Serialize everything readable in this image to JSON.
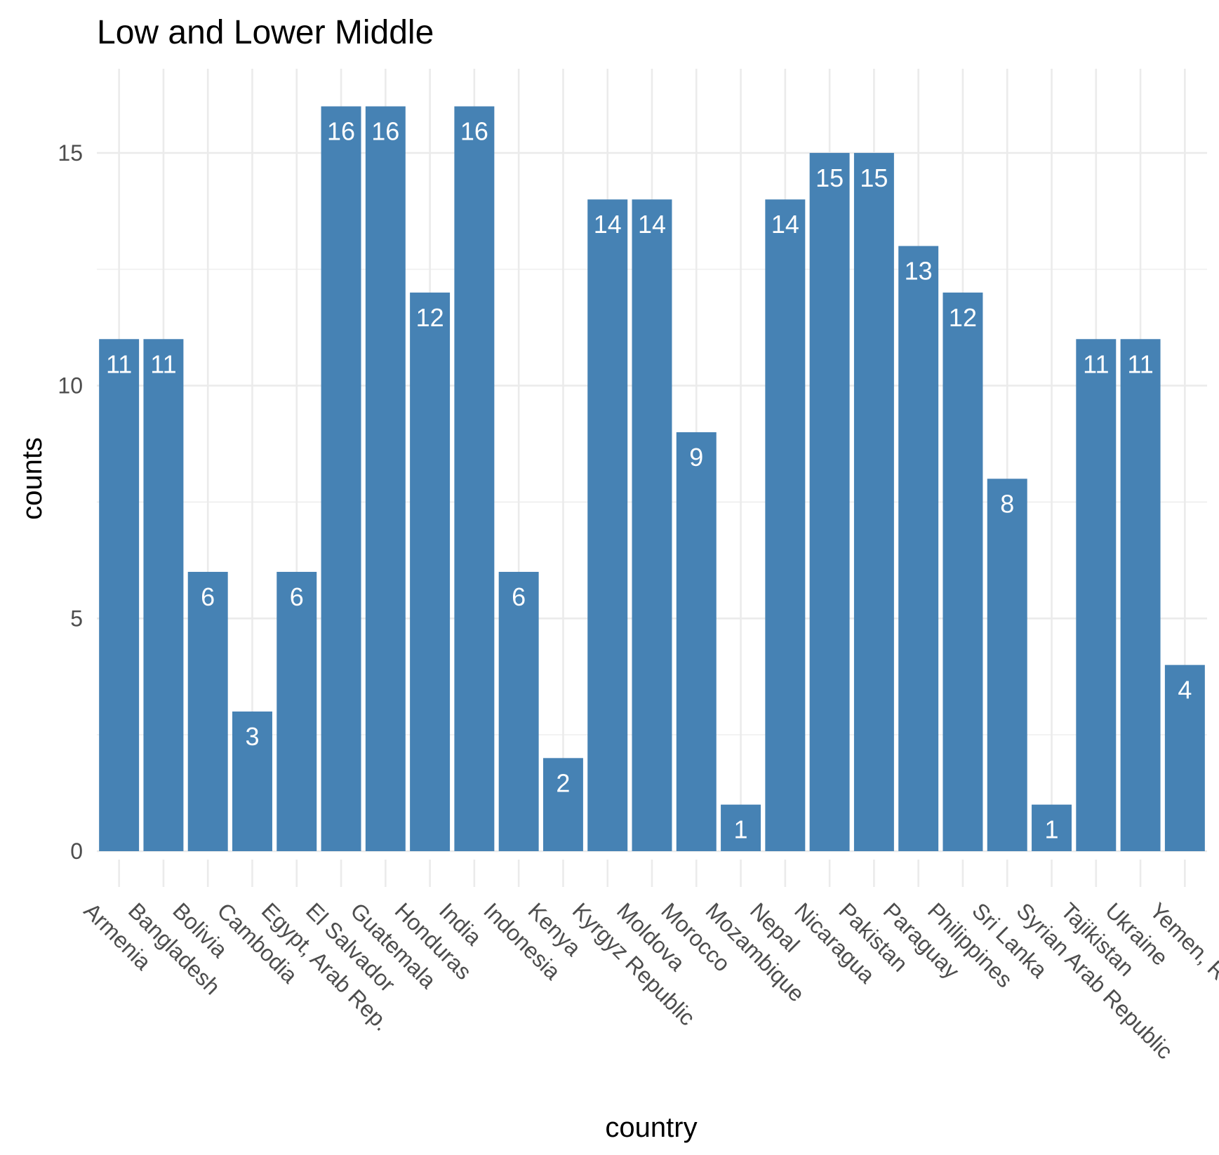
{
  "chart_data": {
    "type": "bar",
    "title": "Low and Lower Middle",
    "xlabel": "country",
    "ylabel": "counts",
    "ylim": [
      0,
      16.8
    ],
    "yticks": [
      0,
      5,
      10,
      15
    ],
    "grid": true,
    "bar_color": "#4682B4",
    "categories": [
      "Armenia",
      "Bangladesh",
      "Bolivia",
      "Cambodia",
      "Egypt, Arab Rep.",
      "El Salvador",
      "Guatemala",
      "Honduras",
      "India",
      "Indonesia",
      "Kenya",
      "Kyrgyz Republic",
      "Moldova",
      "Morocco",
      "Mozambique",
      "Nepal",
      "Nicaragua",
      "Pakistan",
      "Paraguay",
      "Philippines",
      "Sri Lanka",
      "Syrian Arab Republic",
      "Tajikistan",
      "Ukraine",
      "Yemen, Rep."
    ],
    "values": [
      11,
      11,
      6,
      3,
      6,
      16,
      16,
      12,
      16,
      6,
      2,
      14,
      14,
      9,
      1,
      14,
      15,
      15,
      13,
      12,
      8,
      1,
      11,
      11,
      4
    ],
    "data_labels": [
      "11",
      "11",
      "6",
      "3",
      "6",
      "16",
      "16",
      "12",
      "16",
      "6",
      "2",
      "14",
      "14",
      "9",
      "1",
      "14",
      "15",
      "15",
      "13",
      "12",
      "8",
      "1",
      "11",
      "11",
      "4"
    ]
  }
}
